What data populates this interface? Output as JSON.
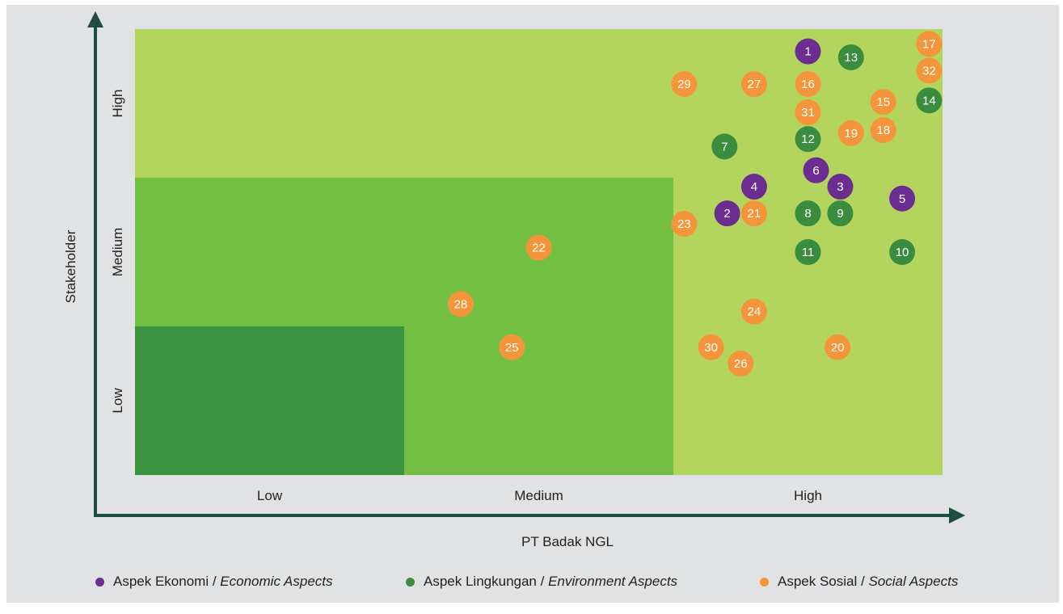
{
  "chart_data": {
    "type": "scatter",
    "xlabel": "PT Badak NGL",
    "ylabel": "Stakeholder",
    "x_ticks": [
      "Low",
      "Medium",
      "High"
    ],
    "y_ticks": [
      "Low",
      "Medium",
      "High"
    ],
    "xlim": [
      0,
      3
    ],
    "ylim": [
      0,
      3
    ],
    "grid": false,
    "legend_position": "bottom",
    "colors": {
      "zone_low": "#3c9340",
      "zone_medium": "#73bf44",
      "zone_high": "#b3d55e",
      "axis": "#1d4d45",
      "economic": "#6c2d91",
      "environment": "#3a8c3f",
      "social": "#f5953b"
    },
    "series": [
      {
        "name": "Aspek Ekonomi",
        "name_en": "Economic Aspects",
        "color_key": "economic",
        "points": [
          {
            "id": "1",
            "x": 2.5,
            "y": 2.85
          },
          {
            "id": "2",
            "x": 2.2,
            "y": 1.76
          },
          {
            "id": "3",
            "x": 2.62,
            "y": 1.94
          },
          {
            "id": "4",
            "x": 2.3,
            "y": 1.94
          },
          {
            "id": "5",
            "x": 2.85,
            "y": 1.86
          },
          {
            "id": "6",
            "x": 2.53,
            "y": 2.05
          }
        ]
      },
      {
        "name": "Aspek Lingkungan",
        "name_en": "Environment Aspects",
        "color_key": "environment",
        "points": [
          {
            "id": "7",
            "x": 2.19,
            "y": 2.21
          },
          {
            "id": "8",
            "x": 2.5,
            "y": 1.76
          },
          {
            "id": "9",
            "x": 2.62,
            "y": 1.76
          },
          {
            "id": "10",
            "x": 2.85,
            "y": 1.5
          },
          {
            "id": "11",
            "x": 2.5,
            "y": 1.5
          },
          {
            "id": "12",
            "x": 2.5,
            "y": 2.26
          },
          {
            "id": "13",
            "x": 2.66,
            "y": 2.81
          },
          {
            "id": "14",
            "x": 2.95,
            "y": 2.52
          }
        ]
      },
      {
        "name": "Aspek Sosial",
        "name_en": "Social Aspects",
        "color_key": "social",
        "points": [
          {
            "id": "15",
            "x": 2.78,
            "y": 2.51
          },
          {
            "id": "16",
            "x": 2.5,
            "y": 2.63
          },
          {
            "id": "17",
            "x": 2.95,
            "y": 2.9
          },
          {
            "id": "18",
            "x": 2.78,
            "y": 2.32
          },
          {
            "id": "19",
            "x": 2.66,
            "y": 2.3
          },
          {
            "id": "20",
            "x": 2.61,
            "y": 0.86
          },
          {
            "id": "21",
            "x": 2.3,
            "y": 1.76
          },
          {
            "id": "22",
            "x": 1.5,
            "y": 1.53
          },
          {
            "id": "23",
            "x": 2.04,
            "y": 1.69
          },
          {
            "id": "24",
            "x": 2.3,
            "y": 1.1
          },
          {
            "id": "25",
            "x": 1.4,
            "y": 0.86
          },
          {
            "id": "26",
            "x": 2.25,
            "y": 0.75
          },
          {
            "id": "27",
            "x": 2.3,
            "y": 2.63
          },
          {
            "id": "28",
            "x": 1.21,
            "y": 1.15
          },
          {
            "id": "29",
            "x": 2.04,
            "y": 2.63
          },
          {
            "id": "30",
            "x": 2.14,
            "y": 0.86
          },
          {
            "id": "31",
            "x": 2.5,
            "y": 2.44
          },
          {
            "id": "32",
            "x": 2.95,
            "y": 2.72
          }
        ]
      }
    ]
  },
  "legend": {
    "separator": " / ",
    "items": [
      {
        "label": "Aspek Ekonomi",
        "label_en": "Economic Aspects",
        "color": "#6c2d91"
      },
      {
        "label": "Aspek Lingkungan",
        "label_en": "Environment Aspects",
        "color": "#3a8c3f"
      },
      {
        "label": "Aspek Sosial",
        "label_en": "Social Aspects",
        "color": "#f5953b"
      }
    ]
  }
}
